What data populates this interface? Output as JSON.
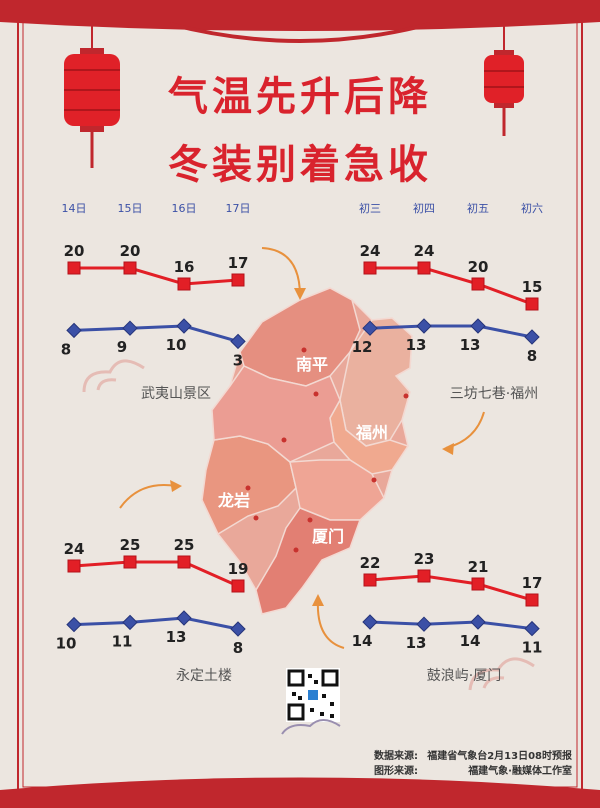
{
  "title": {
    "line1": "气温先升后降",
    "line2": "冬装别着急收"
  },
  "map_labels": {
    "nanping": "南平",
    "fuzhou": "福州",
    "longyan": "龙岩",
    "xiamen": "厦门"
  },
  "footer": {
    "data_source_label": "数据来源:",
    "data_source": "福建省气象台2月13日08时预报",
    "graphic_source_label": "图形来源:",
    "graphic_source": "福建气象·融媒体工作室"
  },
  "colors": {
    "high": "#e21f26",
    "low": "#3b50a6",
    "title": "#d9232d",
    "frame": "#c0272d",
    "map": "#e9a89a"
  },
  "chart_data": [
    {
      "type": "line",
      "location": "武夷山景区",
      "x": [
        "14日",
        "15日",
        "16日",
        "17日"
      ],
      "series": [
        {
          "values": [
            20,
            20,
            16,
            17
          ]
        },
        {
          "values": [
            8,
            9,
            10,
            3
          ]
        }
      ]
    },
    {
      "type": "line",
      "location": "三坊七巷·福州",
      "x": [
        "初三",
        "初四",
        "初五",
        "初六"
      ],
      "series": [
        {
          "values": [
            24,
            24,
            20,
            15
          ]
        },
        {
          "values": [
            12,
            13,
            13,
            8
          ]
        }
      ]
    },
    {
      "type": "line",
      "location": "永定土楼",
      "x": [
        "14日",
        "15日",
        "16日",
        "17日"
      ],
      "series": [
        {
          "values": [
            24,
            25,
            25,
            19
          ]
        },
        {
          "values": [
            10,
            11,
            13,
            8
          ]
        }
      ]
    },
    {
      "type": "line",
      "location": "鼓浪屿·厦门",
      "x": [
        "初三",
        "初四",
        "初五",
        "初六"
      ],
      "series": [
        {
          "values": [
            22,
            23,
            21,
            17
          ]
        },
        {
          "values": [
            14,
            13,
            14,
            11
          ]
        }
      ]
    }
  ]
}
